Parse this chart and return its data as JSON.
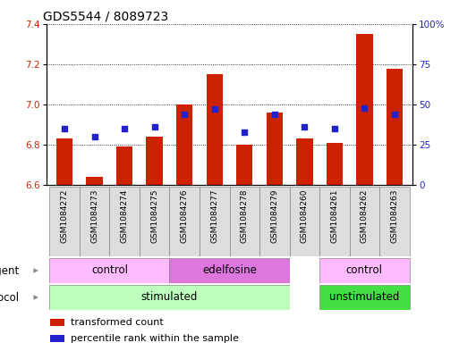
{
  "title": "GDS5544 / 8089723",
  "samples": [
    "GSM1084272",
    "GSM1084273",
    "GSM1084274",
    "GSM1084275",
    "GSM1084276",
    "GSM1084277",
    "GSM1084278",
    "GSM1084279",
    "GSM1084260",
    "GSM1084261",
    "GSM1084262",
    "GSM1084263"
  ],
  "red_values": [
    6.83,
    6.64,
    6.79,
    6.84,
    7.0,
    7.15,
    6.8,
    6.96,
    6.83,
    6.81,
    7.35,
    7.18
  ],
  "blue_values_pct": [
    35,
    30,
    35,
    36,
    44,
    47,
    33,
    44,
    36,
    35,
    48,
    44
  ],
  "ylim_left": [
    6.6,
    7.4
  ],
  "ylim_right": [
    0,
    100
  ],
  "yticks_left": [
    6.6,
    6.8,
    7.0,
    7.2,
    7.4
  ],
  "yticks_right": [
    0,
    25,
    50,
    75,
    100
  ],
  "ytick_labels_right": [
    "0",
    "25",
    "50",
    "75",
    "100%"
  ],
  "bar_color": "#cc2200",
  "dot_color": "#2222cc",
  "bar_bottom": 6.6,
  "bar_width": 0.55,
  "stim_color": "#bbffbb",
  "unstim_color": "#44dd44",
  "ctrl_color": "#ffbbff",
  "edel_color": "#dd77dd",
  "legend_red": "transformed count",
  "legend_blue": "percentile rank within the sample",
  "title_fontsize": 10,
  "tick_fontsize": 7.5,
  "grid_color": "#000000"
}
